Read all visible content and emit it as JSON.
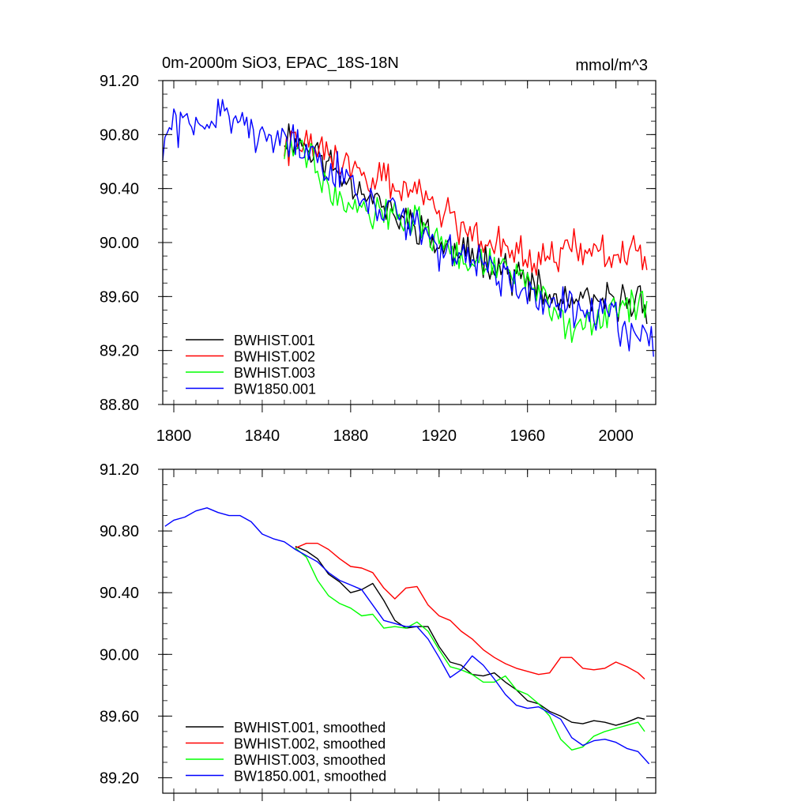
{
  "chart_data": [
    {
      "type": "line",
      "title": "0m-2000m SiO3, EPAC_18S-18N",
      "units": "mmol/m^3",
      "xlim": [
        1795,
        2018
      ],
      "ylim": [
        88.8,
        91.2
      ],
      "xticks": [
        "1800",
        "1840",
        "1880",
        "1920",
        "1960",
        "2000"
      ],
      "xtick_values": [
        1800,
        1840,
        1880,
        1920,
        1960,
        2000
      ],
      "yticks": [
        "88.80",
        "89.20",
        "89.60",
        "90.00",
        "90.40",
        "90.80",
        "91.20"
      ],
      "ytick_values": [
        88.8,
        89.2,
        89.6,
        90.0,
        90.4,
        90.8,
        91.2
      ],
      "legend_position": "bottom-left",
      "series": [
        {
          "name": "BWHIST.001",
          "color": "#000000",
          "x_start": 1850,
          "x_end": 2014,
          "anchors": [
            [
              1850,
              90.8
            ],
            [
              1860,
              90.72
            ],
            [
              1870,
              90.58
            ],
            [
              1880,
              90.45
            ],
            [
              1890,
              90.35
            ],
            [
              1900,
              90.18
            ],
            [
              1910,
              90.15
            ],
            [
              1920,
              89.97
            ],
            [
              1930,
              89.92
            ],
            [
              1940,
              89.9
            ],
            [
              1950,
              89.8
            ],
            [
              1960,
              89.7
            ],
            [
              1970,
              89.58
            ],
            [
              1980,
              89.56
            ],
            [
              1990,
              89.55
            ],
            [
              2000,
              89.56
            ],
            [
              2010,
              89.58
            ],
            [
              2014,
              89.55
            ]
          ],
          "amplitude": 0.17,
          "seed": 11
        },
        {
          "name": "BWHIST.002",
          "color": "#ff0000",
          "x_start": 1850,
          "x_end": 2014,
          "anchors": [
            [
              1850,
              90.72
            ],
            [
              1860,
              90.72
            ],
            [
              1870,
              90.65
            ],
            [
              1880,
              90.55
            ],
            [
              1890,
              90.5
            ],
            [
              1900,
              90.4
            ],
            [
              1910,
              90.42
            ],
            [
              1920,
              90.25
            ],
            [
              1930,
              90.12
            ],
            [
              1940,
              90.05
            ],
            [
              1950,
              89.98
            ],
            [
              1960,
              89.92
            ],
            [
              1970,
              89.9
            ],
            [
              1980,
              89.98
            ],
            [
              1990,
              89.9
            ],
            [
              2000,
              89.93
            ],
            [
              2010,
              89.9
            ],
            [
              2014,
              89.84
            ]
          ],
          "amplitude": 0.17,
          "seed": 22
        },
        {
          "name": "BWHIST.003",
          "color": "#00ff00",
          "x_start": 1850,
          "x_end": 2014,
          "anchors": [
            [
              1850,
              90.7
            ],
            [
              1860,
              90.65
            ],
            [
              1870,
              90.45
            ],
            [
              1880,
              90.3
            ],
            [
              1890,
              90.25
            ],
            [
              1900,
              90.18
            ],
            [
              1910,
              90.18
            ],
            [
              1920,
              90.0
            ],
            [
              1930,
              89.88
            ],
            [
              1940,
              89.85
            ],
            [
              1950,
              89.8
            ],
            [
              1960,
              89.72
            ],
            [
              1970,
              89.55
            ],
            [
              1980,
              89.4
            ],
            [
              1990,
              89.45
            ],
            [
              2000,
              89.5
            ],
            [
              2010,
              89.55
            ],
            [
              2014,
              89.5
            ]
          ],
          "amplitude": 0.17,
          "seed": 33
        },
        {
          "name": "BW1850.001",
          "color": "#0000ff",
          "x_start": 1795,
          "x_end": 2017,
          "anchors": [
            [
              1795,
              90.7
            ],
            [
              1800,
              90.87
            ],
            [
              1810,
              90.92
            ],
            [
              1820,
              90.95
            ],
            [
              1830,
              90.9
            ],
            [
              1840,
              90.78
            ],
            [
              1850,
              90.72
            ],
            [
              1860,
              90.65
            ],
            [
              1870,
              90.55
            ],
            [
              1880,
              90.45
            ],
            [
              1890,
              90.28
            ],
            [
              1900,
              90.18
            ],
            [
              1910,
              90.15
            ],
            [
              1920,
              89.92
            ],
            [
              1930,
              89.95
            ],
            [
              1940,
              89.85
            ],
            [
              1950,
              89.75
            ],
            [
              1960,
              89.65
            ],
            [
              1970,
              89.55
            ],
            [
              1980,
              89.48
            ],
            [
              1990,
              89.45
            ],
            [
              2000,
              89.4
            ],
            [
              2010,
              89.35
            ],
            [
              2017,
              89.22
            ]
          ],
          "amplitude": 0.19,
          "seed": 44
        }
      ]
    },
    {
      "type": "line",
      "title": "",
      "xlim": [
        1795,
        2018
      ],
      "ylim": [
        89.1,
        91.2
      ],
      "xtick_values": [
        1800,
        1840,
        1880,
        1920,
        1960,
        2000
      ],
      "yticks": [
        "89.20",
        "89.60",
        "90.00",
        "90.40",
        "90.80",
        "91.20"
      ],
      "ytick_values": [
        89.2,
        89.6,
        90.0,
        90.4,
        90.8,
        91.2
      ],
      "legend_position": "bottom-left",
      "series": [
        {
          "name": "BWHIST.001, smoothed",
          "color": "#000000",
          "points": [
            [
              1855,
              90.7
            ],
            [
              1860,
              90.67
            ],
            [
              1865,
              90.62
            ],
            [
              1870,
              90.52
            ],
            [
              1875,
              90.47
            ],
            [
              1880,
              90.4
            ],
            [
              1885,
              90.42
            ],
            [
              1890,
              90.46
            ],
            [
              1895,
              90.35
            ],
            [
              1900,
              90.22
            ],
            [
              1905,
              90.17
            ],
            [
              1910,
              90.18
            ],
            [
              1915,
              90.18
            ],
            [
              1920,
              90.05
            ],
            [
              1925,
              89.95
            ],
            [
              1930,
              89.93
            ],
            [
              1935,
              89.87
            ],
            [
              1940,
              89.86
            ],
            [
              1945,
              89.88
            ],
            [
              1950,
              89.82
            ],
            [
              1955,
              89.77
            ],
            [
              1960,
              89.7
            ],
            [
              1965,
              89.68
            ],
            [
              1970,
              89.63
            ],
            [
              1975,
              89.6
            ],
            [
              1980,
              89.56
            ],
            [
              1985,
              89.55
            ],
            [
              1990,
              89.57
            ],
            [
              1995,
              89.56
            ],
            [
              2000,
              89.54
            ],
            [
              2005,
              89.56
            ],
            [
              2010,
              89.59
            ],
            [
              2013,
              89.58
            ]
          ]
        },
        {
          "name": "BWHIST.002, smoothed",
          "color": "#ff0000",
          "points": [
            [
              1855,
              90.69
            ],
            [
              1860,
              90.72
            ],
            [
              1865,
              90.72
            ],
            [
              1870,
              90.68
            ],
            [
              1875,
              90.62
            ],
            [
              1880,
              90.57
            ],
            [
              1885,
              90.56
            ],
            [
              1890,
              90.53
            ],
            [
              1895,
              90.43
            ],
            [
              1900,
              90.36
            ],
            [
              1905,
              90.43
            ],
            [
              1910,
              90.44
            ],
            [
              1915,
              90.32
            ],
            [
              1920,
              90.25
            ],
            [
              1925,
              90.22
            ],
            [
              1930,
              90.15
            ],
            [
              1935,
              90.1
            ],
            [
              1940,
              90.03
            ],
            [
              1945,
              89.98
            ],
            [
              1950,
              89.94
            ],
            [
              1955,
              89.91
            ],
            [
              1960,
              89.89
            ],
            [
              1965,
              89.87
            ],
            [
              1970,
              89.88
            ],
            [
              1975,
              89.98
            ],
            [
              1980,
              89.98
            ],
            [
              1985,
              89.91
            ],
            [
              1990,
              89.9
            ],
            [
              1995,
              89.91
            ],
            [
              2000,
              89.95
            ],
            [
              2005,
              89.92
            ],
            [
              2010,
              89.88
            ],
            [
              2013,
              89.84
            ]
          ]
        },
        {
          "name": "BWHIST.003, smoothed",
          "color": "#00ff00",
          "points": [
            [
              1855,
              90.69
            ],
            [
              1860,
              90.63
            ],
            [
              1865,
              90.48
            ],
            [
              1870,
              90.38
            ],
            [
              1875,
              90.33
            ],
            [
              1880,
              90.3
            ],
            [
              1885,
              90.25
            ],
            [
              1890,
              90.26
            ],
            [
              1895,
              90.17
            ],
            [
              1900,
              90.18
            ],
            [
              1905,
              90.17
            ],
            [
              1910,
              90.21
            ],
            [
              1915,
              90.15
            ],
            [
              1920,
              90.03
            ],
            [
              1925,
              89.92
            ],
            [
              1930,
              89.9
            ],
            [
              1935,
              89.87
            ],
            [
              1940,
              89.82
            ],
            [
              1945,
              89.82
            ],
            [
              1950,
              89.86
            ],
            [
              1955,
              89.77
            ],
            [
              1960,
              89.74
            ],
            [
              1965,
              89.68
            ],
            [
              1970,
              89.6
            ],
            [
              1975,
              89.45
            ],
            [
              1980,
              89.38
            ],
            [
              1985,
              89.4
            ],
            [
              1990,
              89.47
            ],
            [
              1995,
              89.5
            ],
            [
              2000,
              89.52
            ],
            [
              2005,
              89.54
            ],
            [
              2010,
              89.56
            ],
            [
              2013,
              89.5
            ]
          ]
        },
        {
          "name": "BW1850.001, smoothed",
          "color": "#0000ff",
          "points": [
            [
              1796,
              90.83
            ],
            [
              1800,
              90.87
            ],
            [
              1805,
              90.89
            ],
            [
              1810,
              90.93
            ],
            [
              1815,
              90.95
            ],
            [
              1820,
              90.92
            ],
            [
              1825,
              90.9
            ],
            [
              1830,
              90.9
            ],
            [
              1835,
              90.86
            ],
            [
              1840,
              90.78
            ],
            [
              1845,
              90.75
            ],
            [
              1850,
              90.73
            ],
            [
              1855,
              90.68
            ],
            [
              1860,
              90.64
            ],
            [
              1865,
              90.6
            ],
            [
              1870,
              90.53
            ],
            [
              1875,
              90.48
            ],
            [
              1880,
              90.45
            ],
            [
              1885,
              90.42
            ],
            [
              1890,
              90.32
            ],
            [
              1895,
              90.22
            ],
            [
              1900,
              90.2
            ],
            [
              1905,
              90.18
            ],
            [
              1910,
              90.18
            ],
            [
              1915,
              90.1
            ],
            [
              1920,
              89.98
            ],
            [
              1925,
              89.85
            ],
            [
              1930,
              89.9
            ],
            [
              1935,
              89.99
            ],
            [
              1940,
              89.93
            ],
            [
              1945,
              89.84
            ],
            [
              1950,
              89.74
            ],
            [
              1955,
              89.67
            ],
            [
              1960,
              89.65
            ],
            [
              1965,
              89.66
            ],
            [
              1970,
              89.62
            ],
            [
              1975,
              89.58
            ],
            [
              1980,
              89.46
            ],
            [
              1985,
              89.41
            ],
            [
              1990,
              89.44
            ],
            [
              1995,
              89.45
            ],
            [
              2000,
              89.43
            ],
            [
              2005,
              89.39
            ],
            [
              2010,
              89.37
            ],
            [
              2015,
              89.29
            ]
          ]
        }
      ]
    }
  ]
}
